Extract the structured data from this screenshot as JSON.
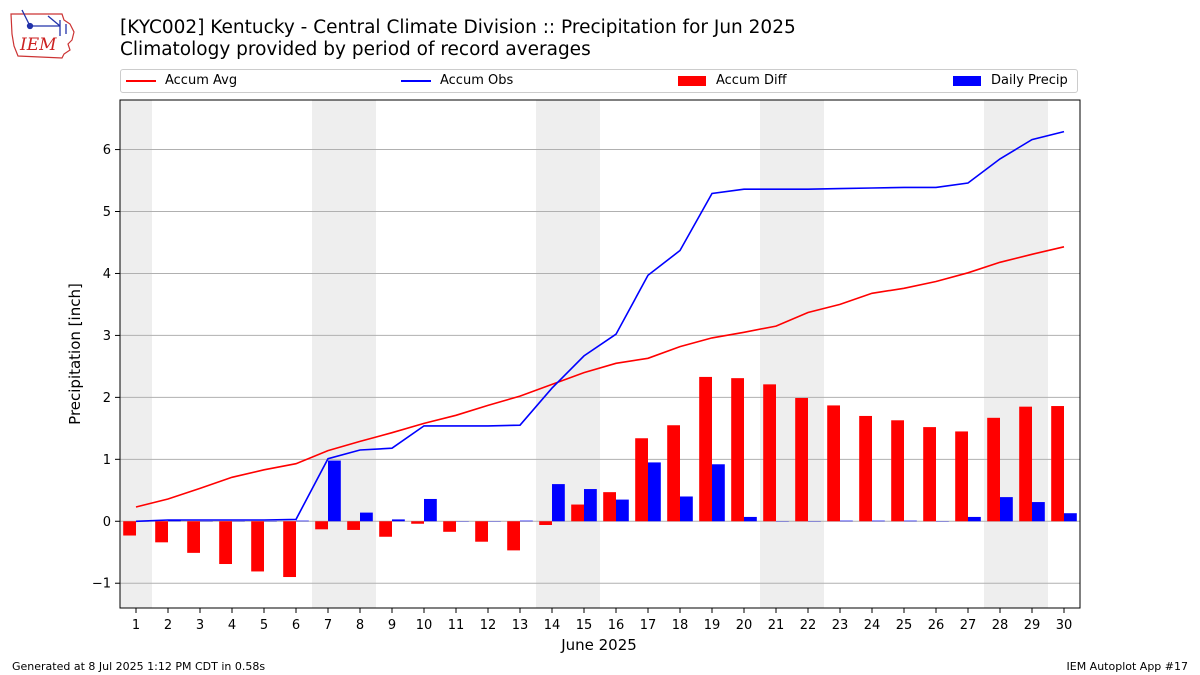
{
  "title": "[KYC002] Kentucky - Central Climate Division :: Precipitation for Jun 2025",
  "subtitle": "Climatology provided by period of record averages",
  "logo_text": "IEM",
  "footer_left": "Generated at 8 Jul 2025 1:12 PM CDT in 0.58s",
  "footer_right": "IEM Autoplot App #17",
  "colors": {
    "avg": "#ff0000",
    "obs": "#0000ff",
    "diff": "#ff0000",
    "daily": "#0000ff",
    "weekend": "#eeeeee",
    "grid": "#b0b0b0"
  },
  "chart_data": {
    "type": "bar",
    "xlabel": "June 2025",
    "ylabel": "Precipitation [inch]",
    "ylim": [
      -1.4,
      6.8
    ],
    "xlim": [
      0.5,
      30.5
    ],
    "yticks": [
      -1,
      0,
      1,
      2,
      3,
      4,
      5,
      6
    ],
    "ytick_labels": [
      "−1",
      "0",
      "1",
      "2",
      "3",
      "4",
      "5",
      "6"
    ],
    "x": [
      1,
      2,
      3,
      4,
      5,
      6,
      7,
      8,
      9,
      10,
      11,
      12,
      13,
      14,
      15,
      16,
      17,
      18,
      19,
      20,
      21,
      22,
      23,
      24,
      25,
      26,
      27,
      28,
      29,
      30
    ],
    "weekend_spans": [
      [
        0.5,
        1.5
      ],
      [
        6.5,
        8.5
      ],
      [
        13.5,
        15.5
      ],
      [
        20.5,
        22.5
      ],
      [
        27.5,
        29.5
      ]
    ],
    "grid": "horizontal",
    "legend_position": "top",
    "series": [
      {
        "name": "Accum Avg",
        "type": "line",
        "values": [
          0.23,
          0.36,
          0.53,
          0.71,
          0.83,
          0.93,
          1.14,
          1.29,
          1.43,
          1.58,
          1.71,
          1.87,
          2.02,
          2.21,
          2.4,
          2.55,
          2.63,
          2.82,
          2.96,
          3.05,
          3.15,
          3.37,
          3.5,
          3.68,
          3.76,
          3.87,
          4.01,
          4.18,
          4.31,
          4.43
        ]
      },
      {
        "name": "Accum Obs",
        "type": "line",
        "values": [
          0.0,
          0.02,
          0.02,
          0.02,
          0.02,
          0.03,
          1.01,
          1.15,
          1.18,
          1.54,
          1.54,
          1.54,
          1.55,
          2.15,
          2.67,
          3.02,
          3.97,
          4.37,
          5.29,
          5.36,
          5.36,
          5.36,
          5.37,
          5.38,
          5.39,
          5.39,
          5.46,
          5.85,
          6.16,
          6.29
        ]
      },
      {
        "name": "Accum Diff",
        "type": "bar",
        "values": [
          -0.23,
          -0.34,
          -0.51,
          -0.69,
          -0.81,
          -0.9,
          -0.13,
          -0.14,
          -0.25,
          -0.04,
          -0.17,
          -0.33,
          -0.47,
          -0.06,
          0.27,
          0.47,
          1.34,
          1.55,
          2.33,
          2.31,
          2.21,
          1.99,
          1.87,
          1.7,
          1.63,
          1.52,
          1.45,
          1.67,
          1.85,
          1.86
        ]
      },
      {
        "name": "Daily Precip",
        "type": "bar",
        "values": [
          0.0,
          0.02,
          0.0,
          0.0,
          0.0,
          0.01,
          0.98,
          0.14,
          0.03,
          0.36,
          0.0,
          0.0,
          0.01,
          0.6,
          0.52,
          0.35,
          0.95,
          0.4,
          0.92,
          0.07,
          0.0,
          0.0,
          0.01,
          0.01,
          0.01,
          0.0,
          0.07,
          0.39,
          0.31,
          0.13
        ]
      }
    ]
  }
}
